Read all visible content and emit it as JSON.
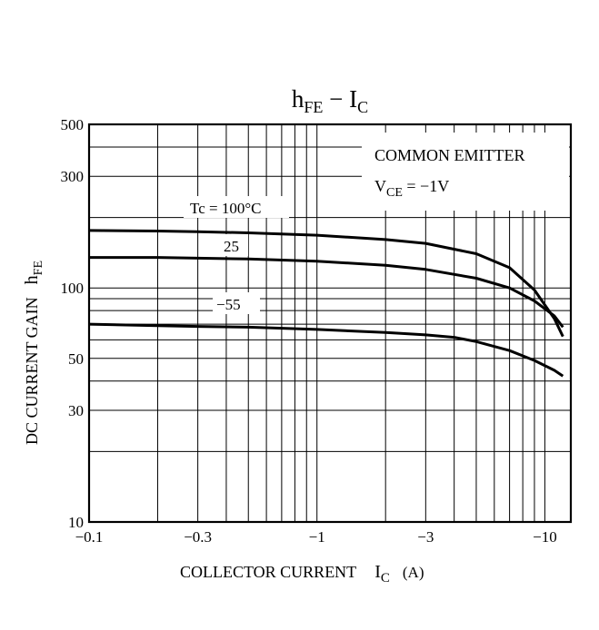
{
  "chart_data": {
    "type": "line",
    "title": {
      "main": "h",
      "main_sub": "FE",
      "sep": " − ",
      "var": "I",
      "var_sub": "C"
    },
    "xlabel": {
      "text": "COLLECTOR CURRENT",
      "var": "I",
      "var_sub": "C",
      "unit": "(A)"
    },
    "ylabel": {
      "text": "DC CURRENT GAIN",
      "var": "h",
      "var_sub": "FE"
    },
    "x_scale": "log",
    "y_scale": "log",
    "xlim": [
      -0.1,
      -13
    ],
    "ylim": [
      10,
      500
    ],
    "x_ticks": [
      {
        "value": -0.1,
        "label": "−0.1"
      },
      {
        "value": -0.3,
        "label": "−0.3"
      },
      {
        "value": -1,
        "label": "−1"
      },
      {
        "value": -3,
        "label": "−3"
      },
      {
        "value": -10,
        "label": "−10"
      }
    ],
    "y_ticks": [
      {
        "value": 10,
        "label": "10"
      },
      {
        "value": 30,
        "label": "30"
      },
      {
        "value": 50,
        "label": "50"
      },
      {
        "value": 100,
        "label": "100"
      },
      {
        "value": 300,
        "label": "300"
      },
      {
        "value": 500,
        "label": "500"
      }
    ],
    "grid": true,
    "annotation": {
      "line1": "COMMON EMITTER",
      "line2_var": "V",
      "line2_sub": "CE",
      "line2_rest": " = −1V",
      "placement": "top-right"
    },
    "series": [
      {
        "name": "Tc = 100°C",
        "x": [
          -0.1,
          -0.2,
          -0.3,
          -0.5,
          -1,
          -2,
          -3,
          -5,
          -7,
          -9,
          -11,
          -12
        ],
        "y": [
          176,
          175,
          174,
          172,
          168,
          161,
          155,
          140,
          122,
          98,
          74,
          62
        ]
      },
      {
        "name": "25",
        "x": [
          -0.1,
          -0.2,
          -0.3,
          -0.5,
          -1,
          -2,
          -3,
          -5,
          -7,
          -9,
          -11,
          -12
        ],
        "y": [
          135,
          135,
          134,
          133,
          130,
          125,
          120,
          110,
          100,
          88,
          76,
          68
        ]
      },
      {
        "name": "−55",
        "x": [
          -0.1,
          -0.2,
          -0.3,
          -0.5,
          -1,
          -2,
          -3,
          -4,
          -5,
          -7,
          -9,
          -11,
          -12
        ],
        "y": [
          70,
          69,
          68.5,
          68,
          66.5,
          64.5,
          63,
          61.5,
          59,
          54,
          49,
          44.5,
          42
        ]
      }
    ]
  }
}
